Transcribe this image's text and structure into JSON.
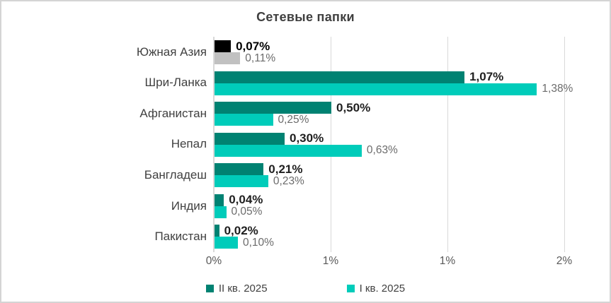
{
  "window": {
    "background": "#ffffff",
    "border_color": "#d4d4d4"
  },
  "chart_data": {
    "type": "bar",
    "orientation": "horizontal",
    "title": "Сетевые папки",
    "categories": [
      "Южная Азия",
      "Шри-Ланка",
      "Афганистан",
      "Непал",
      "Бангладеш",
      "Индия",
      "Пакистан"
    ],
    "series": [
      {
        "name": "II кв. 2025",
        "color": "#008272",
        "values": [
          0.07,
          1.07,
          0.5,
          0.3,
          0.21,
          0.04,
          0.02
        ],
        "labels": [
          "0,07%",
          "1,07%",
          "0,50%",
          "0,30%",
          "0,21%",
          "0,04%",
          "0,02%"
        ]
      },
      {
        "name": "I кв. 2025",
        "color": "#00ccba",
        "values": [
          0.11,
          1.38,
          0.25,
          0.63,
          0.23,
          0.05,
          0.1
        ],
        "labels": [
          "0,11%",
          "1,38%",
          "0,25%",
          "0,63%",
          "0,23%",
          "0,05%",
          "0,10%"
        ]
      }
    ],
    "highlight": {
      "category_index": 0,
      "series_colors": [
        "#000000",
        "#c1c1c1"
      ]
    },
    "x_axis": {
      "unit": "percent",
      "tick_values": [
        0,
        0.5,
        1.0,
        1.5
      ],
      "tick_labels": [
        "0%",
        "1%",
        "1%",
        "2%"
      ],
      "max": 1.67
    },
    "grid": true,
    "gridline_color": "#d9d9d9",
    "legend": {
      "position": "bottom"
    },
    "value_label_colors": {
      "series_0": "#1f1f1f",
      "series_1": "#6b6b6b"
    }
  }
}
